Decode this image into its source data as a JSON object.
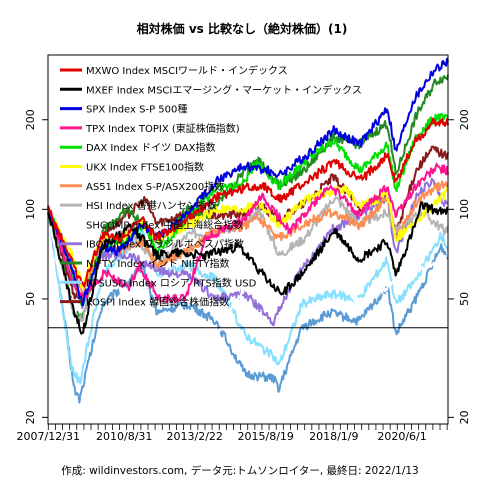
{
  "chart_data": {
    "type": "line",
    "title": "相対株価 vs 比較なし（絶対株価）(1)",
    "footer": "作成: wildinvestors.com, データ元:トムソンロイター, 最終日: 2022/1/13",
    "x_tick_labels": [
      "2007/12/31",
      "2010/8/31",
      "2013/2/22",
      "2015/8/19",
      "2018/1/9",
      "2020/6/1"
    ],
    "x_range": [
      "2007-12-31",
      "2022-01-13"
    ],
    "y_scale": "log",
    "y_range": [
      19,
      330
    ],
    "y_ticks": [
      20,
      50,
      100,
      200
    ],
    "y_ticks_right": [
      20,
      50,
      100,
      200
    ],
    "reference_line": 40,
    "legend_position": "top-left",
    "series": [
      {
        "name": "MXWO Index MSCIワールド・インデックス",
        "color": "#e00000",
        "points": [
          [
            2007.99,
            100
          ],
          [
            2008.7,
            72
          ],
          [
            2009.2,
            55
          ],
          [
            2009.9,
            82
          ],
          [
            2010.5,
            80
          ],
          [
            2011.3,
            92
          ],
          [
            2011.8,
            80
          ],
          [
            2012.8,
            92
          ],
          [
            2013.9,
            110
          ],
          [
            2014.9,
            118
          ],
          [
            2015.6,
            120
          ],
          [
            2016.1,
            108
          ],
          [
            2017.0,
            122
          ],
          [
            2018.0,
            145
          ],
          [
            2018.95,
            125
          ],
          [
            2019.9,
            152
          ],
          [
            2020.2,
            122
          ],
          [
            2020.8,
            165
          ],
          [
            2021.5,
            195
          ],
          [
            2022.03,
            198
          ]
        ]
      },
      {
        "name": "MXEF Index MSCIエマージング・マーケット・インデックス",
        "color": "#000000",
        "points": [
          [
            2007.99,
            100
          ],
          [
            2008.9,
            45
          ],
          [
            2009.2,
            38
          ],
          [
            2009.9,
            75
          ],
          [
            2010.9,
            88
          ],
          [
            2011.8,
            70
          ],
          [
            2012.5,
            72
          ],
          [
            2013.5,
            70
          ],
          [
            2014.7,
            75
          ],
          [
            2015.9,
            55
          ],
          [
            2016.2,
            52
          ],
          [
            2017.0,
            62
          ],
          [
            2018.05,
            85
          ],
          [
            2018.9,
            68
          ],
          [
            2019.9,
            78
          ],
          [
            2020.2,
            60
          ],
          [
            2020.9,
            90
          ],
          [
            2021.1,
            103
          ],
          [
            2021.9,
            97
          ],
          [
            2022.03,
            100
          ]
        ]
      },
      {
        "name": "SPX Index S-P 500種",
        "color": "#0000e0",
        "points": [
          [
            2007.99,
            100
          ],
          [
            2008.8,
            65
          ],
          [
            2009.2,
            48
          ],
          [
            2009.9,
            75
          ],
          [
            2010.5,
            72
          ],
          [
            2011.3,
            90
          ],
          [
            2011.8,
            80
          ],
          [
            2012.9,
            97
          ],
          [
            2013.9,
            125
          ],
          [
            2014.9,
            140
          ],
          [
            2015.7,
            135
          ],
          [
            2016.1,
            130
          ],
          [
            2017.0,
            150
          ],
          [
            2018.0,
            185
          ],
          [
            2018.95,
            165
          ],
          [
            2019.9,
            220
          ],
          [
            2020.2,
            155
          ],
          [
            2020.8,
            230
          ],
          [
            2021.5,
            290
          ],
          [
            2022.03,
            315
          ]
        ]
      },
      {
        "name": "TPX Index TOPIX (東証株価指数)",
        "color": "#ff1493",
        "points": [
          [
            2007.99,
            100
          ],
          [
            2008.9,
            55
          ],
          [
            2009.2,
            50
          ],
          [
            2010.0,
            62
          ],
          [
            2010.8,
            54
          ],
          [
            2011.2,
            65
          ],
          [
            2011.9,
            50
          ],
          [
            2012.8,
            50
          ],
          [
            2013.5,
            80
          ],
          [
            2014.9,
            92
          ],
          [
            2015.5,
            110
          ],
          [
            2016.5,
            85
          ],
          [
            2017.9,
            120
          ],
          [
            2018.9,
            96
          ],
          [
            2019.9,
            120
          ],
          [
            2020.2,
            95
          ],
          [
            2020.9,
            120
          ],
          [
            2021.6,
            138
          ],
          [
            2022.03,
            135
          ]
        ]
      },
      {
        "name": "DAX Index ドイツ DAX指数",
        "color": "#00e000",
        "points": [
          [
            2007.99,
            100
          ],
          [
            2008.8,
            65
          ],
          [
            2009.2,
            47
          ],
          [
            2009.9,
            75
          ],
          [
            2010.6,
            78
          ],
          [
            2011.4,
            90
          ],
          [
            2011.8,
            70
          ],
          [
            2012.9,
            95
          ],
          [
            2013.9,
            118
          ],
          [
            2014.8,
            120
          ],
          [
            2015.3,
            145
          ],
          [
            2016.1,
            120
          ],
          [
            2017.0,
            145
          ],
          [
            2018.0,
            170
          ],
          [
            2018.95,
            135
          ],
          [
            2019.9,
            165
          ],
          [
            2020.2,
            115
          ],
          [
            2020.9,
            175
          ],
          [
            2021.6,
            205
          ],
          [
            2022.03,
            200
          ]
        ]
      },
      {
        "name": "UKX Index FTSE100指数",
        "color": "#ffff00",
        "points": [
          [
            2007.99,
            100
          ],
          [
            2008.9,
            68
          ],
          [
            2009.2,
            55
          ],
          [
            2009.9,
            82
          ],
          [
            2010.5,
            78
          ],
          [
            2011.3,
            90
          ],
          [
            2011.8,
            80
          ],
          [
            2012.9,
            88
          ],
          [
            2013.9,
            100
          ],
          [
            2014.9,
            100
          ],
          [
            2015.4,
            105
          ],
          [
            2016.1,
            88
          ],
          [
            2017.0,
            108
          ],
          [
            2018.4,
            118
          ],
          [
            2018.95,
            102
          ],
          [
            2019.9,
            112
          ],
          [
            2020.2,
            80
          ],
          [
            2020.9,
            90
          ],
          [
            2021.6,
            105
          ],
          [
            2022.03,
            115
          ]
        ]
      },
      {
        "name": "AS51 Index S-P/ASX200指数",
        "color": "#ff8c50",
        "points": [
          [
            2007.99,
            100
          ],
          [
            2008.9,
            60
          ],
          [
            2009.2,
            52
          ],
          [
            2009.9,
            78
          ],
          [
            2010.5,
            72
          ],
          [
            2011.3,
            78
          ],
          [
            2011.8,
            65
          ],
          [
            2012.8,
            72
          ],
          [
            2013.9,
            85
          ],
          [
            2014.9,
            88
          ],
          [
            2015.3,
            95
          ],
          [
            2016.1,
            80
          ],
          [
            2017.0,
            90
          ],
          [
            2018.0,
            98
          ],
          [
            2018.95,
            88
          ],
          [
            2019.9,
            110
          ],
          [
            2020.2,
            80
          ],
          [
            2020.9,
            105
          ],
          [
            2021.6,
            118
          ],
          [
            2022.03,
            122
          ]
        ]
      },
      {
        "name": "HSI Index 香港ハンセン指数",
        "color": "#b4b4b4",
        "points": [
          [
            2007.99,
            100
          ],
          [
            2008.9,
            45
          ],
          [
            2009.2,
            42
          ],
          [
            2009.9,
            78
          ],
          [
            2010.9,
            85
          ],
          [
            2011.8,
            65
          ],
          [
            2012.9,
            82
          ],
          [
            2013.9,
            85
          ],
          [
            2014.9,
            88
          ],
          [
            2015.4,
            100
          ],
          [
            2016.1,
            70
          ],
          [
            2017.0,
            80
          ],
          [
            2018.05,
            110
          ],
          [
            2018.9,
            90
          ],
          [
            2019.9,
            97
          ],
          [
            2020.2,
            85
          ],
          [
            2021.1,
            98
          ],
          [
            2021.9,
            85
          ],
          [
            2022.03,
            87
          ]
        ]
      },
      {
        "name": "SHCOMP Index 中国上海総合指数",
        "color": "#ffffff",
        "points": [
          [
            2007.99,
            100
          ],
          [
            2008.9,
            32
          ],
          [
            2009.2,
            37
          ],
          [
            2009.6,
            62
          ],
          [
            2010.9,
            52
          ],
          [
            2011.8,
            43
          ],
          [
            2012.9,
            40
          ],
          [
            2013.9,
            38
          ],
          [
            2014.9,
            55
          ],
          [
            2015.45,
            93
          ],
          [
            2015.9,
            65
          ],
          [
            2016.5,
            55
          ],
          [
            2017.9,
            62
          ],
          [
            2018.9,
            48
          ],
          [
            2019.9,
            55
          ],
          [
            2020.9,
            62
          ],
          [
            2021.9,
            68
          ],
          [
            2022.03,
            66
          ]
        ]
      },
      {
        "name": "IBOV Index ブラジルボベスパ指数",
        "color": "#9370db",
        "points": [
          [
            2007.99,
            100
          ],
          [
            2008.8,
            60
          ],
          [
            2009.2,
            48
          ],
          [
            2009.9,
            70
          ],
          [
            2010.9,
            70
          ],
          [
            2011.9,
            62
          ],
          [
            2012.9,
            60
          ],
          [
            2013.9,
            50
          ],
          [
            2014.9,
            52
          ],
          [
            2015.9,
            42
          ],
          [
            2016.5,
            55
          ],
          [
            2017.9,
            85
          ],
          [
            2018.9,
            95
          ],
          [
            2019.9,
            110
          ],
          [
            2020.2,
            70
          ],
          [
            2020.9,
            110
          ],
          [
            2021.5,
            125
          ],
          [
            2021.9,
            105
          ],
          [
            2022.03,
            108
          ]
        ]
      },
      {
        "name": "NIFTY Index インド NIFTY指数",
        "color": "#228b22",
        "points": [
          [
            2007.99,
            100
          ],
          [
            2008.9,
            45
          ],
          [
            2009.2,
            43
          ],
          [
            2009.9,
            85
          ],
          [
            2010.8,
            100
          ],
          [
            2011.9,
            78
          ],
          [
            2012.9,
            100
          ],
          [
            2013.6,
            95
          ],
          [
            2014.9,
            135
          ],
          [
            2015.3,
            150
          ],
          [
            2016.1,
            120
          ],
          [
            2017.0,
            135
          ],
          [
            2018.0,
            175
          ],
          [
            2018.9,
            165
          ],
          [
            2019.9,
            195
          ],
          [
            2020.2,
            130
          ],
          [
            2020.9,
            205
          ],
          [
            2021.6,
            270
          ],
          [
            2022.03,
            280
          ]
        ]
      },
      {
        "name": "RTSUSD Index ロシア RTS指数 USD",
        "color": "#87e0ff",
        "points": [
          [
            2007.99,
            100
          ],
          [
            2008.8,
            30
          ],
          [
            2009.1,
            26
          ],
          [
            2009.9,
            60
          ],
          [
            2010.9,
            75
          ],
          [
            2011.3,
            85
          ],
          [
            2011.8,
            60
          ],
          [
            2012.9,
            65
          ],
          [
            2013.9,
            58
          ],
          [
            2014.9,
            38
          ],
          [
            2015.9,
            32
          ],
          [
            2016.1,
            30
          ],
          [
            2016.9,
            48
          ],
          [
            2017.9,
            52
          ],
          [
            2018.9,
            50
          ],
          [
            2019.9,
            68
          ],
          [
            2020.2,
            48
          ],
          [
            2020.9,
            58
          ],
          [
            2021.8,
            82
          ],
          [
            2022.03,
            74
          ]
        ]
      },
      {
        "name": "KOSPI Index 韓国総合株価指数",
        "color": "#8b1a1a",
        "points": [
          [
            2007.99,
            100
          ],
          [
            2008.9,
            52
          ],
          [
            2009.2,
            50
          ],
          [
            2009.9,
            82
          ],
          [
            2010.9,
            98
          ],
          [
            2011.4,
            108
          ],
          [
            2011.8,
            90
          ],
          [
            2012.9,
            97
          ],
          [
            2013.9,
            95
          ],
          [
            2014.9,
            97
          ],
          [
            2015.5,
            103
          ],
          [
            2016.1,
            92
          ],
          [
            2017.0,
            105
          ],
          [
            2018.0,
            128
          ],
          [
            2018.95,
            102
          ],
          [
            2019.9,
            110
          ],
          [
            2020.2,
            82
          ],
          [
            2020.9,
            135
          ],
          [
            2021.5,
            160
          ],
          [
            2022.03,
            150
          ]
        ]
      },
      {
        "name": "",
        "color": "#5a9bd5",
        "points": [
          [
            2007.99,
            100
          ],
          [
            2008.7,
            35
          ],
          [
            2008.9,
            25
          ],
          [
            2009.1,
            23
          ],
          [
            2009.9,
            48
          ],
          [
            2010.9,
            58
          ],
          [
            2011.3,
            65
          ],
          [
            2011.8,
            45
          ],
          [
            2012.9,
            48
          ],
          [
            2013.9,
            42
          ],
          [
            2014.9,
            28
          ],
          [
            2015.9,
            27
          ],
          [
            2016.1,
            25
          ],
          [
            2016.9,
            40
          ],
          [
            2017.9,
            45
          ],
          [
            2018.9,
            42
          ],
          [
            2019.9,
            55
          ],
          [
            2020.2,
            38
          ],
          [
            2020.9,
            50
          ],
          [
            2021.8,
            75
          ],
          [
            2022.03,
            68
          ]
        ]
      }
    ]
  }
}
